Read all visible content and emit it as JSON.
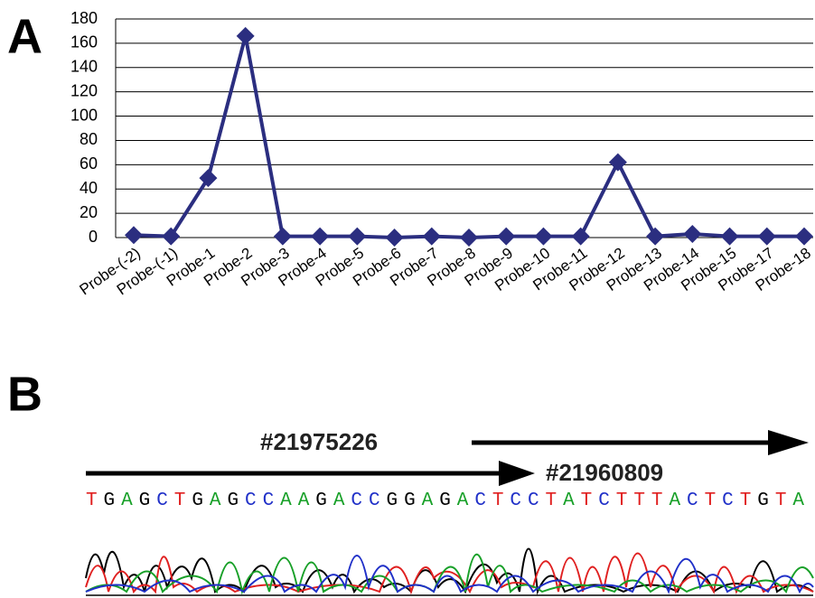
{
  "chart_data": {
    "type": "line",
    "categories": [
      "Probe-(-2)",
      "Probe-(-1)",
      "Probe-1",
      "Probe-2",
      "Probe-3",
      "Probe-4",
      "Probe-5",
      "Probe-6",
      "Probe-7",
      "Probe-8",
      "Probe-9",
      "Probe-10",
      "Probe-11",
      "Probe-12",
      "Probe-13",
      "Probe-14",
      "Probe-15",
      "Probe-17",
      "Probe-18"
    ],
    "series": [
      {
        "color": "#2b2e80",
        "values": [
          2,
          1,
          49,
          166,
          1,
          1,
          1,
          0,
          1,
          0,
          1,
          1,
          1,
          62,
          1,
          3,
          1,
          1,
          1
        ]
      }
    ],
    "ylim": [
      0,
      180
    ],
    "yticks": [
      0,
      20,
      40,
      60,
      80,
      100,
      120,
      140,
      160,
      180
    ],
    "grid": true,
    "marker": "diamond"
  },
  "panel_labels": [
    "A",
    "B"
  ],
  "sequencing": {
    "primers": [
      "#21975226",
      "#21960809"
    ],
    "sequence": "TGAGCTGAGCCAAGACCGGAGACTCCTATCTTTACTCTGTA"
  }
}
